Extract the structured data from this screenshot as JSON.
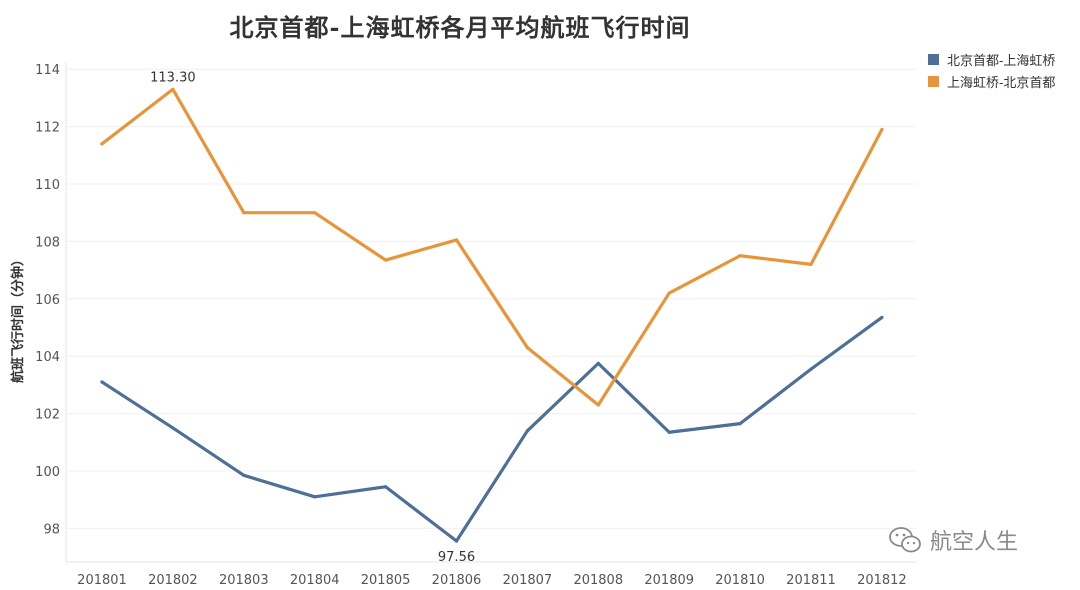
{
  "chart_data": {
    "type": "line",
    "title": "北京首都-上海虹桥各月平均航班飞行时间",
    "ylabel": "航班飞行时间（分钟）",
    "xlabel": "",
    "categories": [
      "201801",
      "201802",
      "201803",
      "201804",
      "201805",
      "201806",
      "201807",
      "201808",
      "201809",
      "201810",
      "201811",
      "201812"
    ],
    "ylim": [
      96.8,
      114.6
    ],
    "yticks": [
      98,
      100,
      102,
      104,
      106,
      108,
      110,
      112,
      114
    ],
    "grid": true,
    "legend_position": "top-right",
    "series": [
      {
        "name": "北京首都-上海虹桥",
        "color": "#4e6f96",
        "values": [
          103.1,
          101.5,
          99.85,
          99.1,
          99.45,
          97.56,
          101.4,
          103.75,
          101.35,
          101.65,
          103.55,
          105.35
        ]
      },
      {
        "name": "上海虹桥-北京首都",
        "color": "#e8953a",
        "values": [
          111.4,
          113.3,
          109.0,
          109.0,
          107.35,
          108.05,
          104.3,
          102.3,
          106.2,
          107.5,
          107.2,
          111.9
        ]
      }
    ],
    "annotations": [
      {
        "series": 1,
        "index": 1,
        "text": "113.30"
      },
      {
        "series": 0,
        "index": 5,
        "text": "97.56"
      }
    ]
  },
  "watermark": {
    "text": "航空人生",
    "icon": "wechat-icon"
  }
}
